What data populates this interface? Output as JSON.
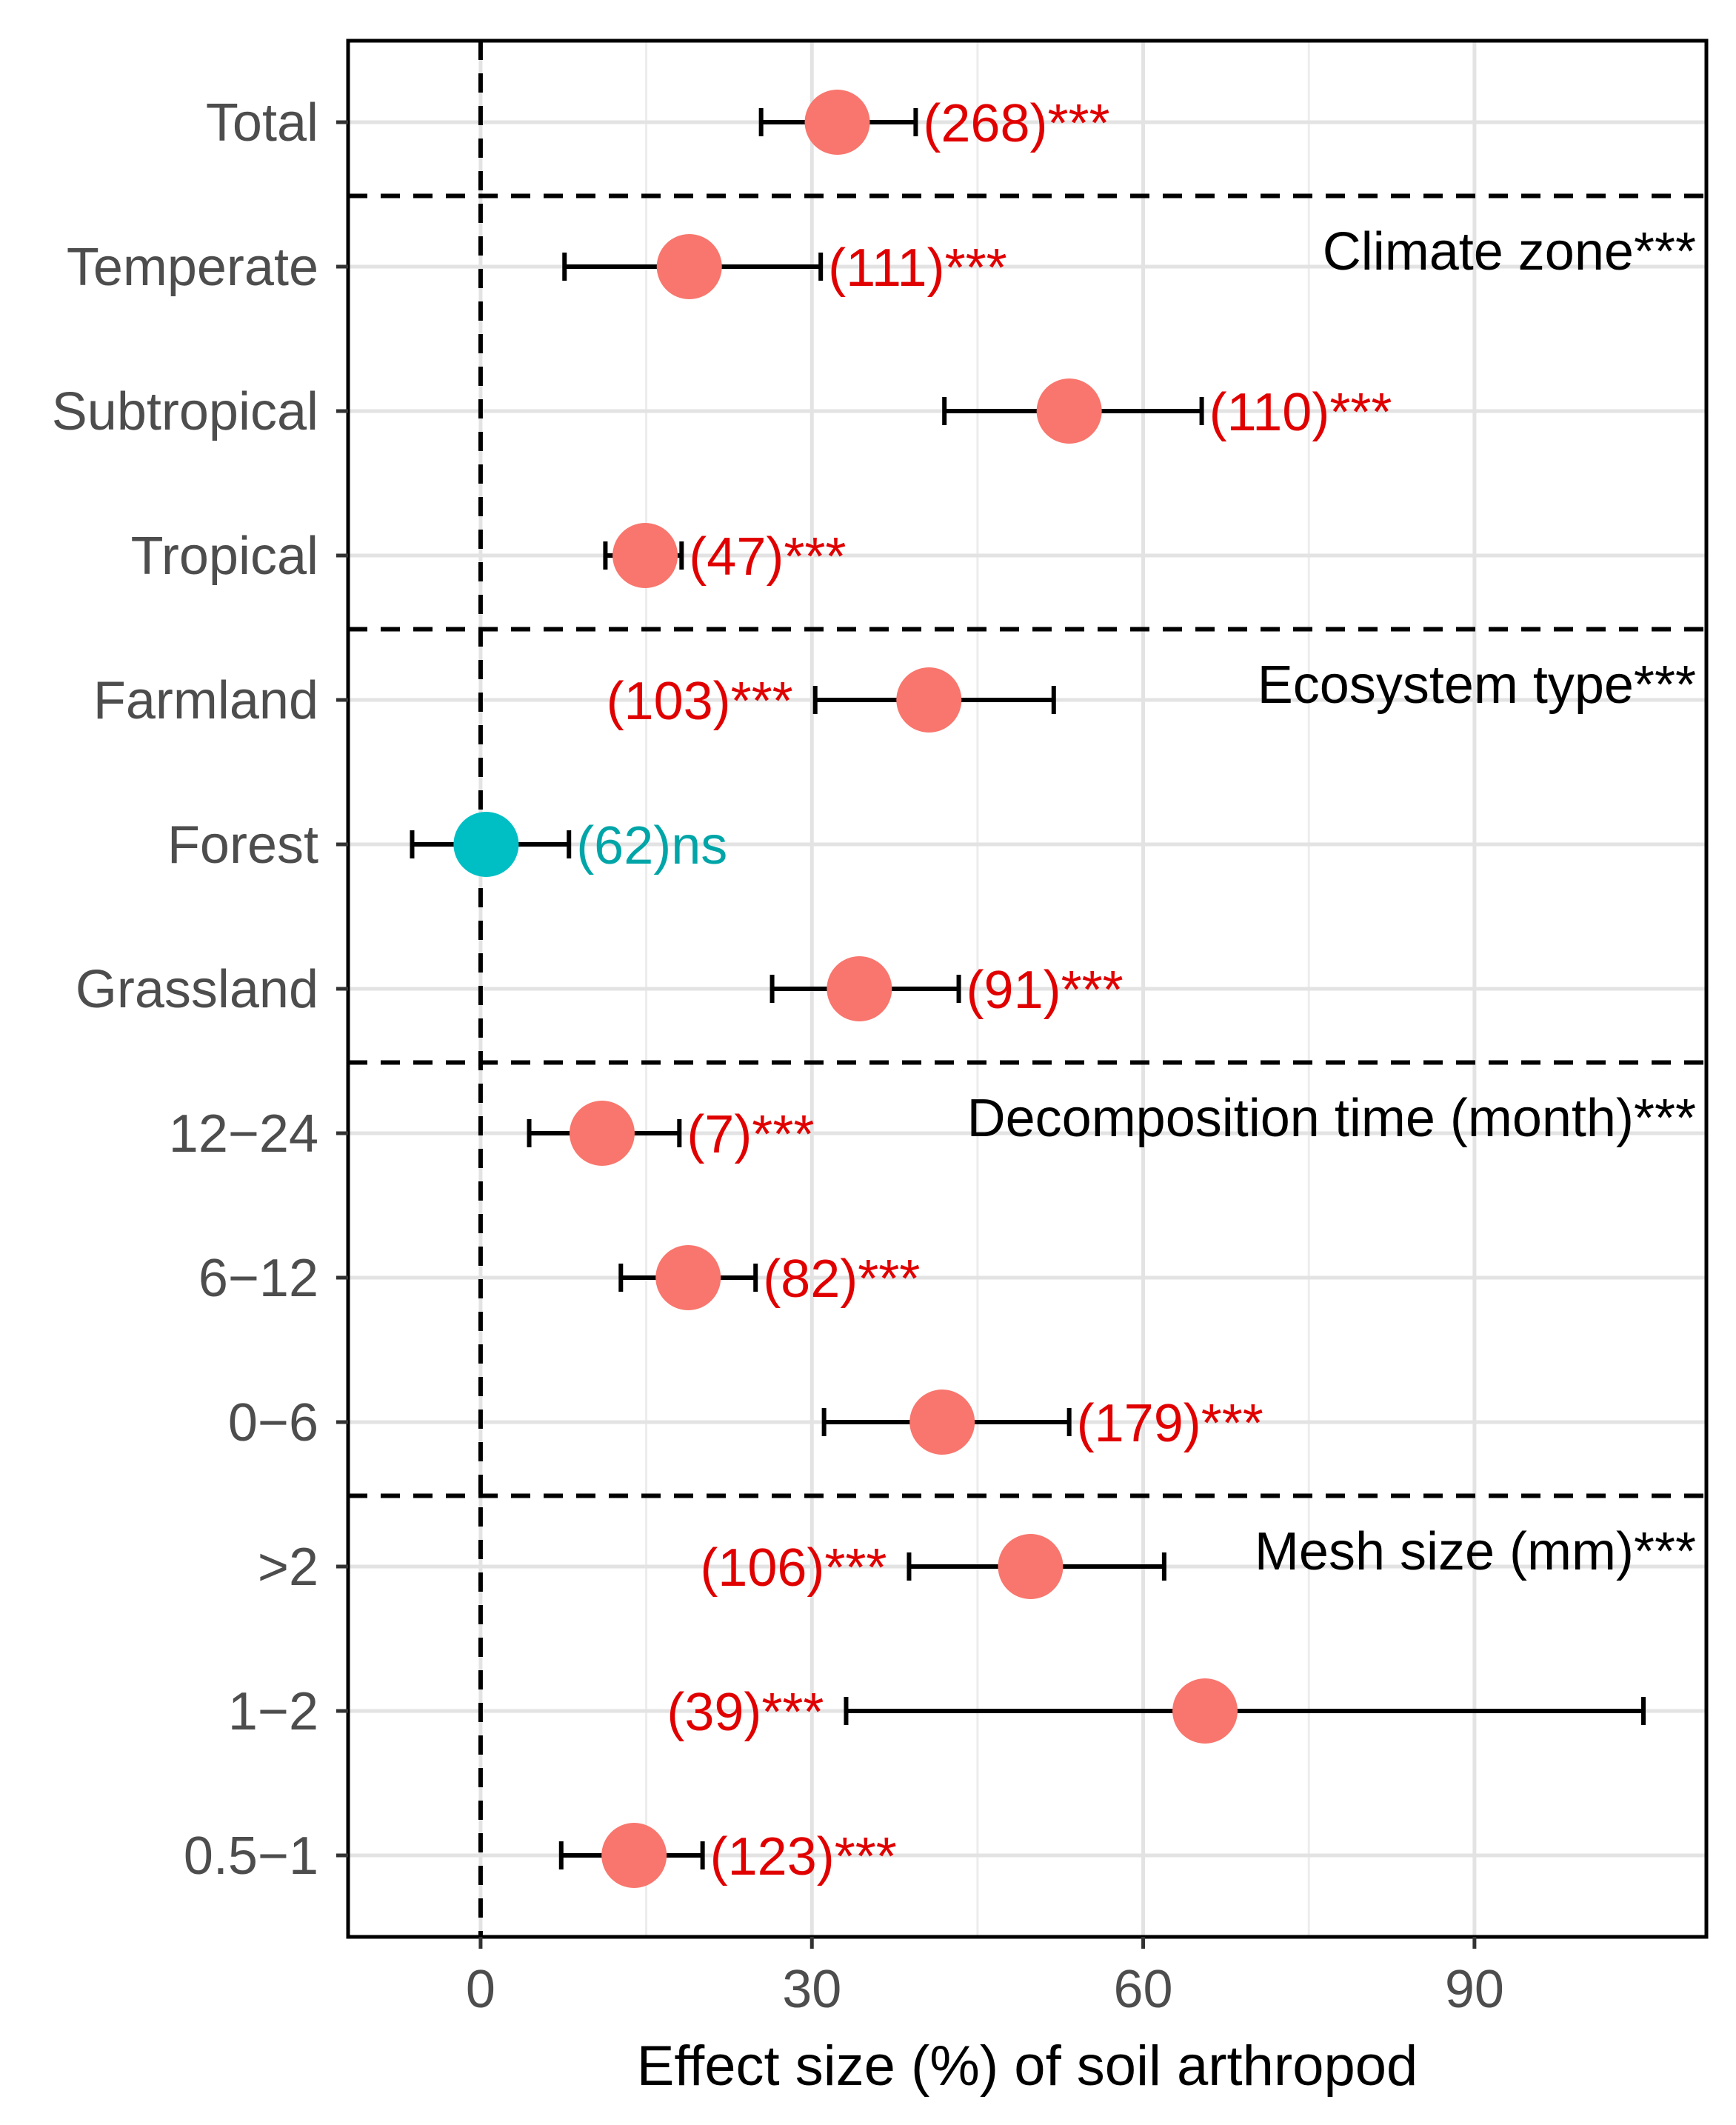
{
  "chart_data": {
    "type": "forest",
    "xlabel": "Effect size (%) of soil arthropod",
    "ylabel": "",
    "xlim": [
      -12,
      111
    ],
    "xticks": [
      0,
      30,
      60,
      90
    ],
    "xtick_labels": [
      "0",
      "30",
      "60",
      "90"
    ],
    "zero_line": 0,
    "grid": true,
    "colors": {
      "significant": "#f8766d",
      "nonsignificant": "#00bfc4",
      "sig_text": "#e00000",
      "ns_text": "#00a5a8"
    },
    "rows": [
      {
        "category": "Total",
        "mean": 32.3,
        "lower": 25.4,
        "upper": 39.4,
        "label": "(268)***",
        "significant": true,
        "label_side": "right"
      },
      {
        "category": "Temperate",
        "mean": 18.9,
        "lower": 7.6,
        "upper": 30.8,
        "label": "(111)***",
        "significant": true,
        "label_side": "right"
      },
      {
        "category": "Subtropical",
        "mean": 53.3,
        "lower": 42.0,
        "upper": 65.3,
        "label": "(110)***",
        "significant": true,
        "label_side": "right"
      },
      {
        "category": "Tropical",
        "mean": 14.9,
        "lower": 11.3,
        "upper": 18.2,
        "label": "(47)***",
        "significant": true,
        "label_side": "right"
      },
      {
        "category": "Farmland",
        "mean": 40.6,
        "lower": 30.3,
        "upper": 51.9,
        "label": "(103)***",
        "significant": true,
        "label_side": "left"
      },
      {
        "category": "Forest",
        "mean": 0.5,
        "lower": -6.2,
        "upper": 8.0,
        "label": "(62)ns",
        "significant": false,
        "label_side": "right"
      },
      {
        "category": "Grassland",
        "mean": 34.3,
        "lower": 26.4,
        "upper": 43.3,
        "label": "(91)***",
        "significant": true,
        "label_side": "right"
      },
      {
        "category": "12−24",
        "mean": 11.0,
        "lower": 4.4,
        "upper": 18.0,
        "label": "(7)***",
        "significant": true,
        "label_side": "right"
      },
      {
        "category": "6−12",
        "mean": 18.8,
        "lower": 12.7,
        "upper": 24.9,
        "label": "(82)***",
        "significant": true,
        "label_side": "right"
      },
      {
        "category": "0−6",
        "mean": 41.8,
        "lower": 31.1,
        "upper": 53.3,
        "label": "(179)***",
        "significant": true,
        "label_side": "right"
      },
      {
        "category": ">2",
        "mean": 49.8,
        "lower": 38.8,
        "upper": 61.9,
        "label": "(106)***",
        "significant": true,
        "label_side": "left"
      },
      {
        "category": "1−2",
        "mean": 65.6,
        "lower": 33.1,
        "upper": 105.3,
        "label": "(39)***",
        "significant": true,
        "label_side": "left"
      },
      {
        "category": "0.5−1",
        "mean": 13.9,
        "lower": 7.3,
        "upper": 20.1,
        "label": "(123)***",
        "significant": true,
        "label_side": "right"
      }
    ],
    "groups": [
      {
        "label": "Climate zone***",
        "first_row": 1
      },
      {
        "label": "Ecosystem type***",
        "first_row": 4
      },
      {
        "label": "Decomposition time (month)***",
        "first_row": 7
      },
      {
        "label": "Mesh size (mm)***",
        "first_row": 10
      }
    ]
  }
}
